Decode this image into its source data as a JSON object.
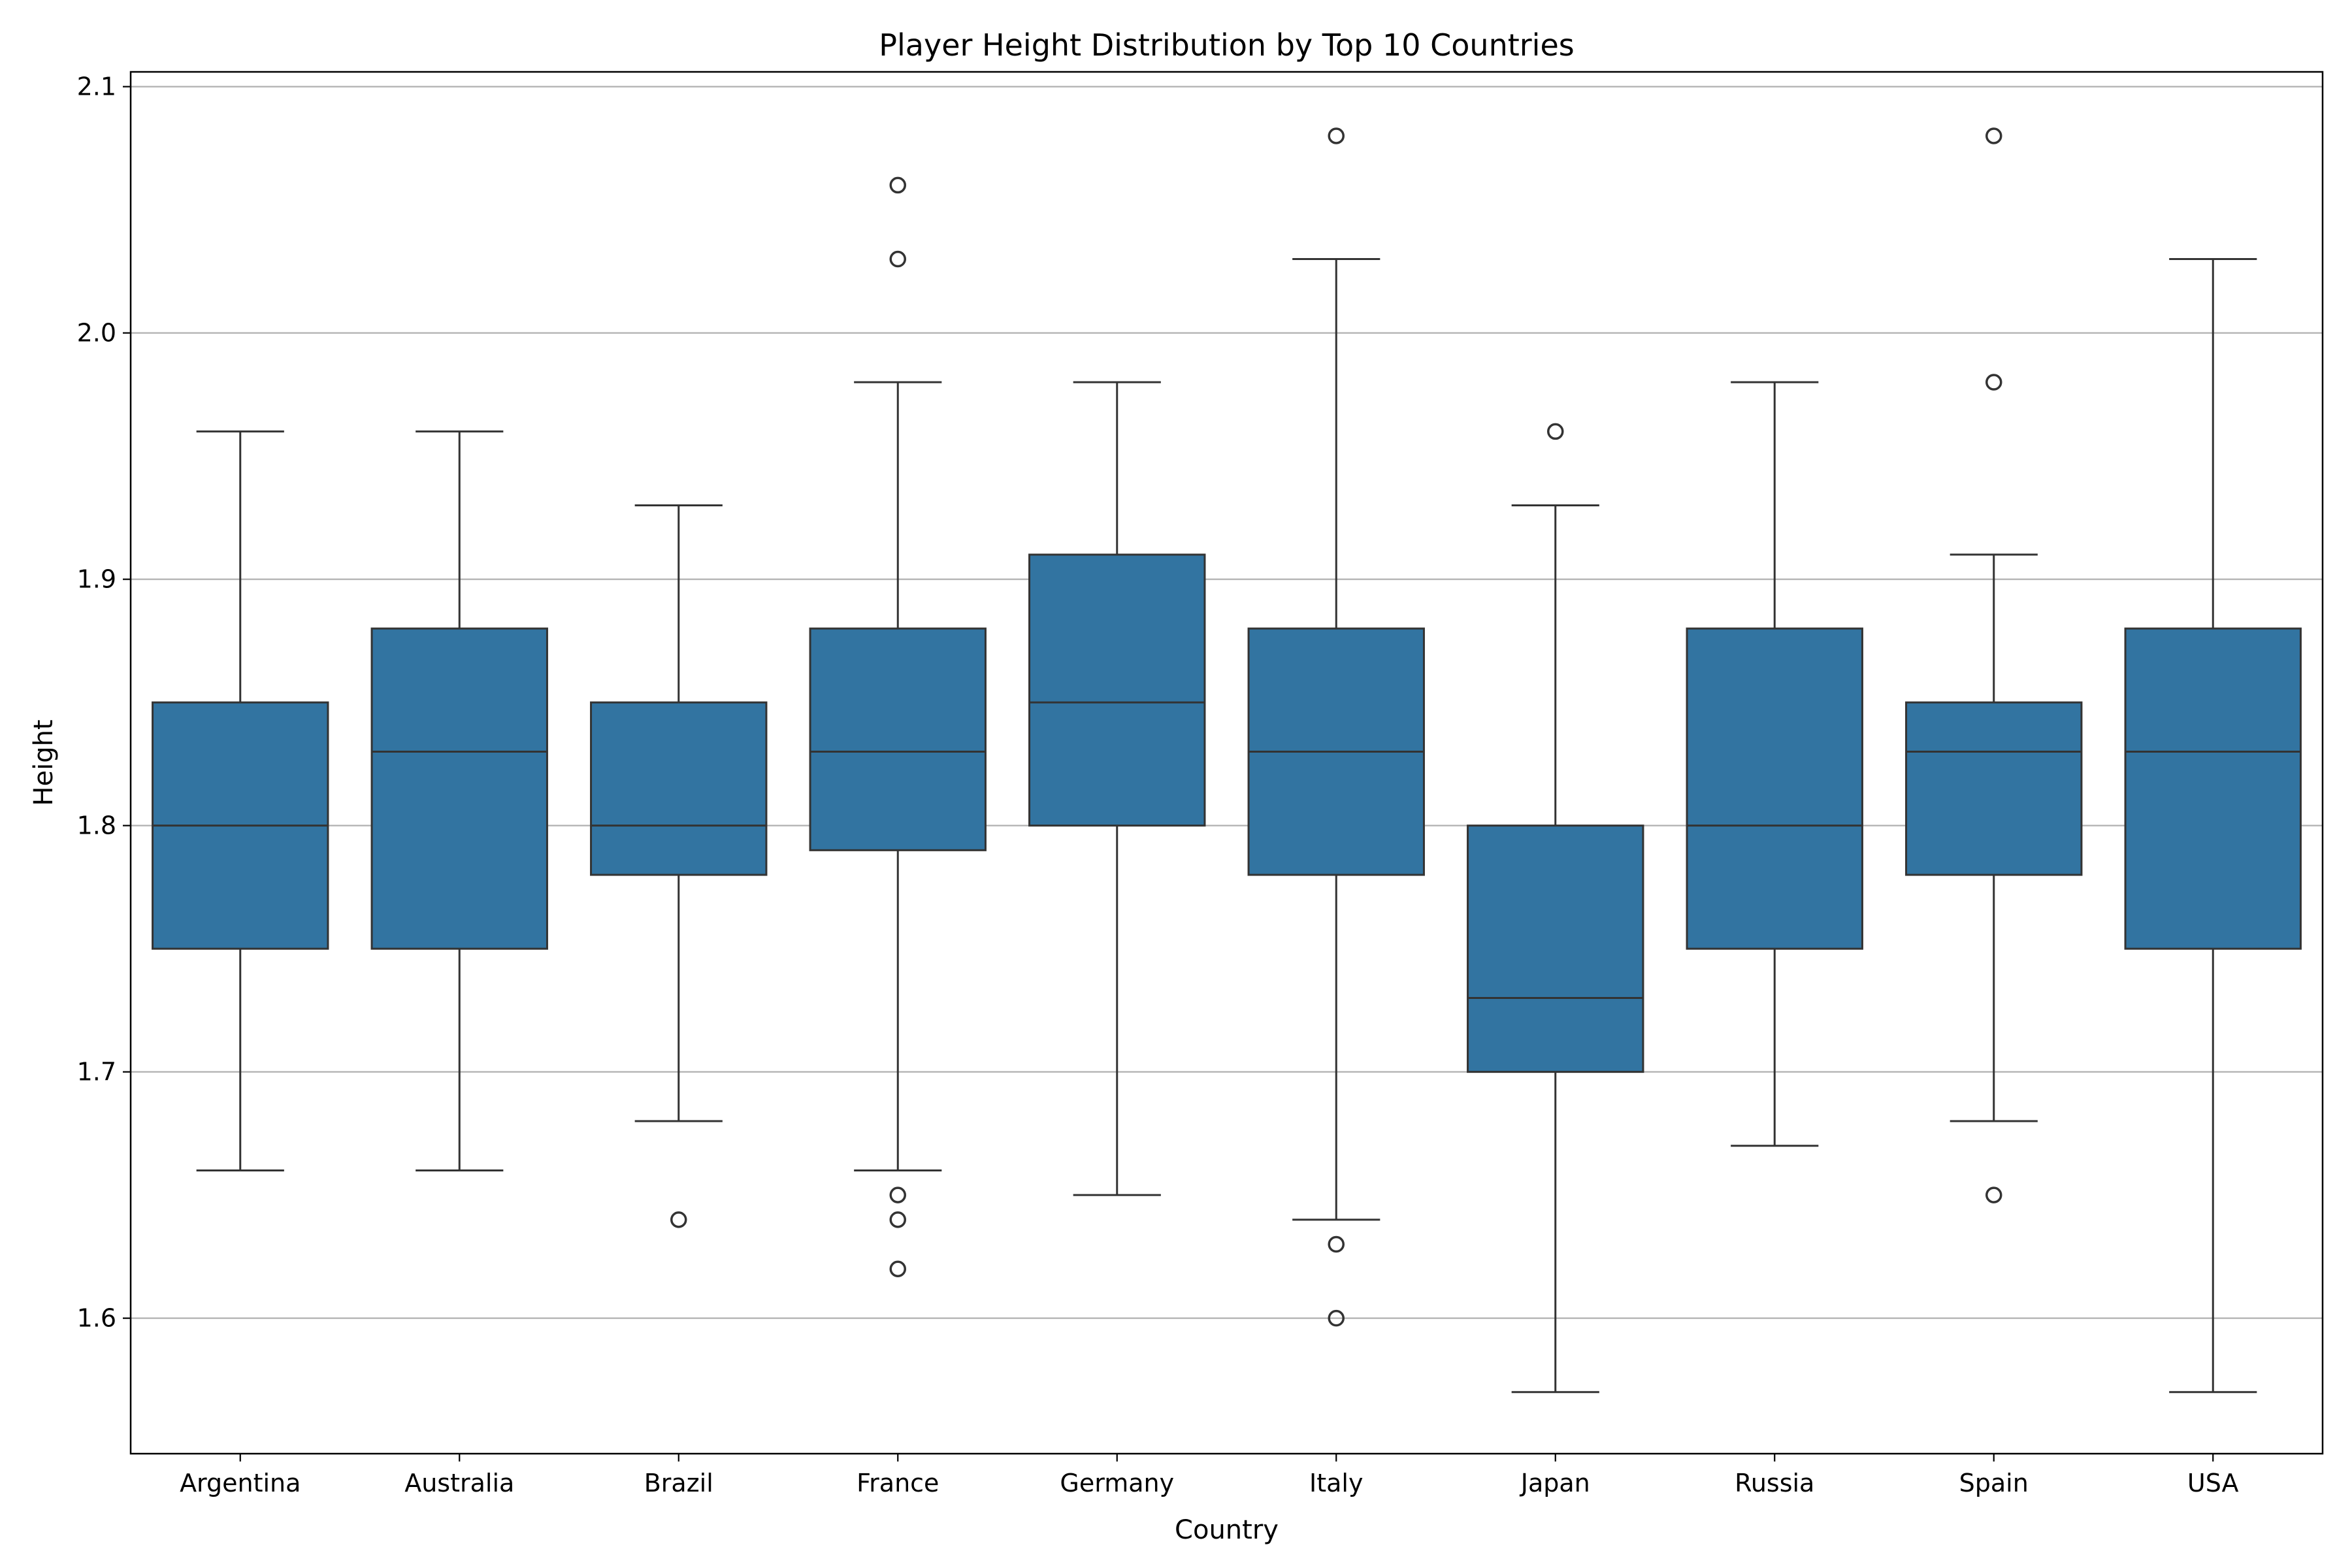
{
  "chart_data": {
    "type": "box",
    "title": "Player Height Distribution by Top 10 Countries",
    "xlabel": "Country",
    "ylabel": "Height",
    "ylim": [
      1.545,
      2.106
    ],
    "yticks": [
      "1.6",
      "1.7",
      "1.8",
      "1.9",
      "2.0",
      "2.1"
    ],
    "grid": "y",
    "box_color": "#3274a1",
    "line_color": "#333333",
    "categories": [
      "Argentina",
      "Australia",
      "Brazil",
      "France",
      "Germany",
      "Italy",
      "Japan",
      "Russia",
      "Spain",
      "USA"
    ],
    "boxes": [
      {
        "country": "Argentina",
        "whisker_low": 1.66,
        "q1": 1.75,
        "median": 1.8,
        "q3": 1.85,
        "whisker_high": 1.96,
        "outliers": []
      },
      {
        "country": "Australia",
        "whisker_low": 1.66,
        "q1": 1.75,
        "median": 1.83,
        "q3": 1.88,
        "whisker_high": 1.96,
        "outliers": []
      },
      {
        "country": "Brazil",
        "whisker_low": 1.68,
        "q1": 1.78,
        "median": 1.8,
        "q3": 1.85,
        "whisker_high": 1.93,
        "outliers": [
          1.64
        ]
      },
      {
        "country": "France",
        "whisker_low": 1.66,
        "q1": 1.79,
        "median": 1.83,
        "q3": 1.88,
        "whisker_high": 1.98,
        "outliers": [
          1.65,
          1.64,
          1.62,
          2.03,
          2.06
        ]
      },
      {
        "country": "Germany",
        "whisker_low": 1.65,
        "q1": 1.8,
        "median": 1.85,
        "q3": 1.91,
        "whisker_high": 1.98,
        "outliers": []
      },
      {
        "country": "Italy",
        "whisker_low": 1.64,
        "q1": 1.78,
        "median": 1.83,
        "q3": 1.88,
        "whisker_high": 2.03,
        "outliers": [
          1.63,
          1.6,
          2.08
        ]
      },
      {
        "country": "Japan",
        "whisker_low": 1.57,
        "q1": 1.7,
        "median": 1.73,
        "q3": 1.8,
        "whisker_high": 1.93,
        "outliers": [
          1.96
        ]
      },
      {
        "country": "Russia",
        "whisker_low": 1.67,
        "q1": 1.75,
        "median": 1.8,
        "q3": 1.88,
        "whisker_high": 1.98,
        "outliers": []
      },
      {
        "country": "Spain",
        "whisker_low": 1.68,
        "q1": 1.78,
        "median": 1.83,
        "q3": 1.85,
        "whisker_high": 1.91,
        "outliers": [
          1.65,
          1.98,
          2.08
        ]
      },
      {
        "country": "USA",
        "whisker_low": 1.57,
        "q1": 1.75,
        "median": 1.83,
        "q3": 1.88,
        "whisker_high": 2.03,
        "outliers": []
      }
    ]
  }
}
